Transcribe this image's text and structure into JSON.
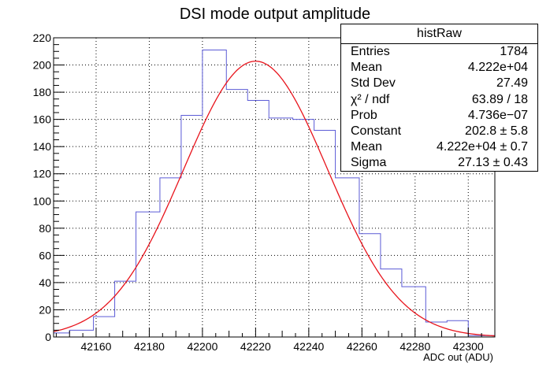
{
  "chart_data": {
    "type": "histogram",
    "title": "DSI mode output amplitude",
    "xlabel": "ADC out (ADU)",
    "ylabel": "",
    "xlim": [
      42144,
      42310
    ],
    "ylim": [
      0,
      220
    ],
    "xticks": [
      42160,
      42180,
      42200,
      42220,
      42240,
      42260,
      42280,
      42300
    ],
    "yticks": [
      0,
      20,
      40,
      60,
      80,
      100,
      120,
      140,
      160,
      180,
      200,
      220
    ],
    "grid": true,
    "bin_edges": [
      42144,
      42150,
      42159,
      42167,
      42175,
      42184,
      42192,
      42200,
      42209,
      42217,
      42225,
      42234,
      42242,
      42250,
      42259,
      42267,
      42275,
      42284,
      42292,
      42300,
      42310
    ],
    "counts": [
      3,
      5,
      15,
      41,
      92,
      117,
      163,
      211,
      182,
      174,
      161,
      160,
      152,
      117,
      76,
      50,
      37,
      11,
      12,
      1
    ],
    "histogram_color": "#5b5bd6",
    "fit": {
      "function": "gaus",
      "constant": 202.8,
      "mean": 42220,
      "sigma": 27.13,
      "color": "#e8141c"
    },
    "stats_box": {
      "title": "histRaw",
      "rows": [
        {
          "label": "Entries",
          "value": "1784"
        },
        {
          "label": "Mean",
          "value": "4.222e+04"
        },
        {
          "label": "Std Dev",
          "value": "27.49"
        },
        {
          "label": "χ² / ndf",
          "value": "63.89 / 18"
        },
        {
          "label": "Prob",
          "value": "4.736e−07"
        },
        {
          "label": "Constant",
          "value": "202.8 ± 5.8"
        },
        {
          "label": "Mean",
          "value": "4.222e+04 ± 0.7"
        },
        {
          "label": "Sigma",
          "value": "27.13 ± 0.43"
        }
      ]
    }
  }
}
